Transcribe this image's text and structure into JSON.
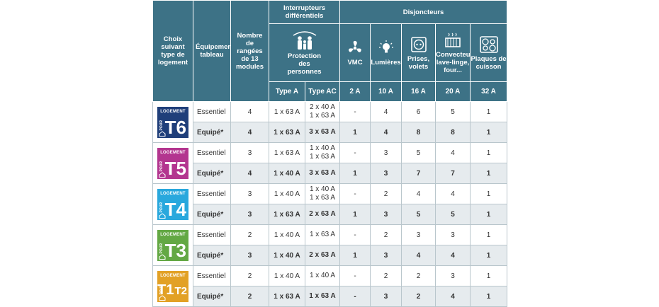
{
  "headers": {
    "choix": "Choix suivant type de logement",
    "equipement": "Équipement tableau",
    "rangees": "Nombre de rangées de 13 modules",
    "interrupteurs": "Interrupteurs différentiels",
    "protection": "Protection des personnes",
    "disjoncteurs": "Disjoncteurs",
    "vmc": "VMC",
    "lumieres": "Lumières",
    "prises": "Prises, volets",
    "convecteurs": "Convecteurs, lave-linge, four...",
    "plaques": "Plaques de cuisson",
    "typeA": "Type A",
    "typeAC": "Type AC",
    "a2": "2 A",
    "a10": "10 A",
    "a16": "16 A",
    "a20": "20 A",
    "a32": "32 A"
  },
  "icons": [
    "people-icon",
    "fan-icon",
    "bulb-icon",
    "outlet-icon",
    "radiator-icon",
    "cooktop-icon"
  ],
  "badge_text": {
    "logement": "LOGEMENT",
    "pour": "POUR"
  },
  "housing": [
    {
      "type": "T6",
      "color": "#1f3f7a",
      "rows": [
        {
          "label": "Essentiel",
          "rangees": "4",
          "typeA": "1 x 63 A",
          "typeAC": [
            "2 x 40 A",
            "1 x 63 A"
          ],
          "vmc": "-",
          "l10": "4",
          "p16": "6",
          "c20": "5",
          "k32": "1"
        },
        {
          "label": "Equipé*",
          "rangees": "4",
          "typeA": "1 x 63 A",
          "typeAC": [
            "3 x 63 A"
          ],
          "vmc": "1",
          "l10": "4",
          "p16": "8",
          "c20": "8",
          "k32": "1"
        }
      ]
    },
    {
      "type": "T5",
      "color": "#b3358f",
      "rows": [
        {
          "label": "Essentiel",
          "rangees": "3",
          "typeA": "1 x 63 A",
          "typeAC": [
            "1 x 40 A",
            "1 x 63 A"
          ],
          "vmc": "-",
          "l10": "3",
          "p16": "5",
          "c20": "4",
          "k32": "1"
        },
        {
          "label": "Equipé*",
          "rangees": "4",
          "typeA": "1 x 40 A",
          "typeAC": [
            "3 x 63 A"
          ],
          "vmc": "1",
          "l10": "3",
          "p16": "7",
          "c20": "7",
          "k32": "1"
        }
      ]
    },
    {
      "type": "T4",
      "color": "#29a8dd",
      "rows": [
        {
          "label": "Essentiel",
          "rangees": "3",
          "typeA": "1 x 40 A",
          "typeAC": [
            "1 x 40 A",
            "1 x 63 A"
          ],
          "vmc": "-",
          "l10": "2",
          "p16": "4",
          "c20": "4",
          "k32": "1"
        },
        {
          "label": "Equipé*",
          "rangees": "3",
          "typeA": "1 x 63 A",
          "typeAC": [
            "2 x 63 A"
          ],
          "vmc": "1",
          "l10": "3",
          "p16": "5",
          "c20": "5",
          "k32": "1"
        }
      ]
    },
    {
      "type": "T3",
      "color": "#63a844",
      "rows": [
        {
          "label": "Essentiel",
          "rangees": "2",
          "typeA": "1 x 40 A",
          "typeAC": [
            "1 x 63 A"
          ],
          "vmc": "-",
          "l10": "2",
          "p16": "3",
          "c20": "3",
          "k32": "1"
        },
        {
          "label": "Equipé*",
          "rangees": "3",
          "typeA": "1 x 40 A",
          "typeAC": [
            "2 x 63 A"
          ],
          "vmc": "1",
          "l10": "3",
          "p16": "4",
          "c20": "4",
          "k32": "1"
        }
      ]
    },
    {
      "type": "T1 T2",
      "t1": "T1",
      "t2": "T2",
      "color": "#e2a126",
      "rows": [
        {
          "label": "Essentiel",
          "rangees": "2",
          "typeA": "1 x 40 A",
          "typeAC": [
            "1 x 40 A"
          ],
          "vmc": "-",
          "l10": "2",
          "p16": "2",
          "c20": "3",
          "k32": "1"
        },
        {
          "label": "Equipé*",
          "rangees": "2",
          "typeA": "1 x 63 A",
          "typeAC": [
            "1 x 63 A"
          ],
          "vmc": "-",
          "l10": "3",
          "p16": "2",
          "c20": "4",
          "k32": "1"
        }
      ]
    }
  ]
}
